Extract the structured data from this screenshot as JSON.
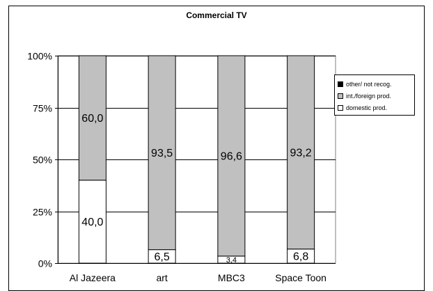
{
  "colors": {
    "domestic": "#ffffff",
    "foreign": "#c0c0c0",
    "other": "#000000",
    "plot_background": "#ffffff",
    "grid": "#000000"
  },
  "chart_data": {
    "type": "bar",
    "stacked": true,
    "percent": true,
    "title": "Commercial TV",
    "categories": [
      "Al Jazeera",
      "art",
      "MBC3",
      "Space Toon"
    ],
    "series": [
      {
        "name": "domestic prod.",
        "values": [
          40.0,
          6.5,
          3.4,
          6.8
        ],
        "labels": [
          "40,0",
          "6,5",
          "3,4",
          "6,8"
        ],
        "color": "#ffffff"
      },
      {
        "name": "int./foreign prod.",
        "values": [
          60.0,
          93.5,
          96.6,
          93.2
        ],
        "labels": [
          "60,0",
          "93,5",
          "96,6",
          "93,2"
        ],
        "color": "#c0c0c0"
      },
      {
        "name": "other/ not recog.",
        "values": [
          0,
          0,
          0,
          0
        ],
        "labels": [
          "",
          "",
          "",
          ""
        ],
        "color": "#000000"
      }
    ],
    "ylim": [
      0,
      100
    ],
    "yticks": [
      "0%",
      "25%",
      "50%",
      "75%",
      "100%"
    ],
    "grid": true,
    "legend_position": "right",
    "legend_order": [
      "other/ not recog.",
      "int./foreign prod.",
      "domestic prod."
    ],
    "xlabel": "",
    "ylabel": ""
  }
}
